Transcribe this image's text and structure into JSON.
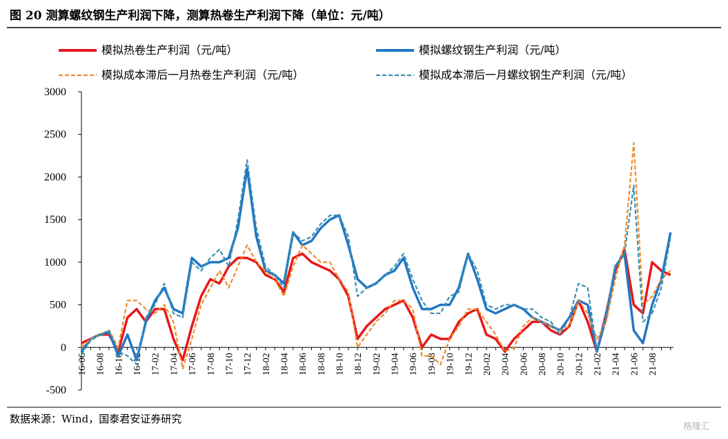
{
  "chart_data": {
    "type": "line",
    "title": "图 20 测算螺纹钢生产利润下降，测算热卷生产利润下降（单位：元/吨）",
    "source": "数据来源：Wind，国泰君安证券研究",
    "watermark": "格隆汇",
    "categories": [
      "16-06",
      null,
      "16-08",
      null,
      "16-10",
      null,
      "16-12",
      null,
      "17-02",
      null,
      "17-04",
      null,
      "17-06",
      null,
      "17-08",
      null,
      "17-10",
      null,
      "17-12",
      null,
      "18-02",
      null,
      "18-04",
      null,
      "18-06",
      null,
      "18-08",
      null,
      "18-10",
      null,
      "18-12",
      null,
      "19-02",
      null,
      "19-04",
      null,
      "19-06",
      null,
      "19-08",
      null,
      "19-10",
      null,
      "19-12",
      null,
      "20-02",
      null,
      "20-04",
      null,
      "20-06",
      null,
      "20-08",
      null,
      "20-10",
      null,
      "20-12",
      null,
      "21-02",
      null,
      "21-04",
      null,
      "21-06",
      null,
      "21-08",
      null,
      null
    ],
    "series": [
      {
        "name": "模拟热卷生产利润（元/吨）",
        "color": "#e8171a",
        "dash": false,
        "values": [
          50,
          100,
          150,
          150,
          -50,
          350,
          450,
          300,
          450,
          450,
          100,
          -150,
          250,
          600,
          800,
          750,
          950,
          1050,
          1050,
          1000,
          850,
          800,
          650,
          1050,
          1100,
          1000,
          950,
          900,
          800,
          600,
          100,
          250,
          350,
          450,
          500,
          550,
          350,
          0,
          150,
          100,
          100,
          300,
          400,
          450,
          150,
          100,
          -50,
          100,
          200,
          300,
          300,
          200,
          150,
          250,
          550,
          300,
          -50,
          400,
          900,
          1150,
          500,
          400,
          1000,
          900,
          850
        ]
      },
      {
        "name": "模拟螺纹钢生产利润（元/吨）",
        "color": "#2177c4",
        "dash": false,
        "values": [
          -50,
          100,
          150,
          180,
          -100,
          150,
          -150,
          300,
          550,
          700,
          450,
          400,
          1050,
          950,
          1000,
          1000,
          1050,
          1400,
          2100,
          1300,
          900,
          850,
          750,
          1350,
          1200,
          1250,
          1400,
          1500,
          1550,
          1200,
          800,
          700,
          750,
          850,
          900,
          1050,
          700,
          450,
          450,
          500,
          500,
          700,
          1100,
          800,
          450,
          400,
          450,
          500,
          450,
          350,
          300,
          250,
          200,
          350,
          550,
          500,
          -50,
          350,
          950,
          1100,
          200,
          50,
          500,
          800,
          1350
        ]
      },
      {
        "name": "模拟成本滞后一月热卷生产利润（元/吨）",
        "color": "#f08a2b",
        "dash": true,
        "values": [
          0,
          100,
          150,
          200,
          0,
          550,
          550,
          450,
          400,
          500,
          300,
          -250,
          100,
          500,
          700,
          900,
          700,
          950,
          1200,
          1000,
          900,
          800,
          600,
          950,
          1200,
          1100,
          1000,
          1000,
          800,
          650,
          0,
          150,
          300,
          400,
          550,
          550,
          450,
          -100,
          -100,
          -200,
          100,
          250,
          450,
          450,
          300,
          150,
          -50,
          0,
          250,
          350,
          300,
          250,
          200,
          250,
          550,
          400,
          100,
          300,
          800,
          1200,
          2400,
          500,
          600,
          800,
          900
        ]
      },
      {
        "name": "模拟成本滞后一月螺纹钢生产利润（元/吨）",
        "color": "#3a8fb0",
        "dash": true,
        "values": [
          -80,
          80,
          150,
          200,
          -50,
          -100,
          -200,
          350,
          500,
          750,
          400,
          350,
          1000,
          900,
          1050,
          1150,
          950,
          1500,
          2200,
          1400,
          950,
          850,
          700,
          1350,
          1250,
          1300,
          1450,
          1550,
          1550,
          1300,
          600,
          700,
          750,
          850,
          950,
          1100,
          800,
          550,
          400,
          400,
          600,
          650,
          1100,
          900,
          500,
          450,
          500,
          500,
          450,
          450,
          350,
          300,
          150,
          350,
          750,
          700,
          -50,
          400,
          950,
          1100,
          1900,
          300,
          400,
          700,
          1300
        ]
      }
    ],
    "ylim": [
      -500,
      3000
    ],
    "yticks": [
      -500,
      0,
      500,
      1000,
      1500,
      2000,
      2500,
      3000
    ]
  }
}
